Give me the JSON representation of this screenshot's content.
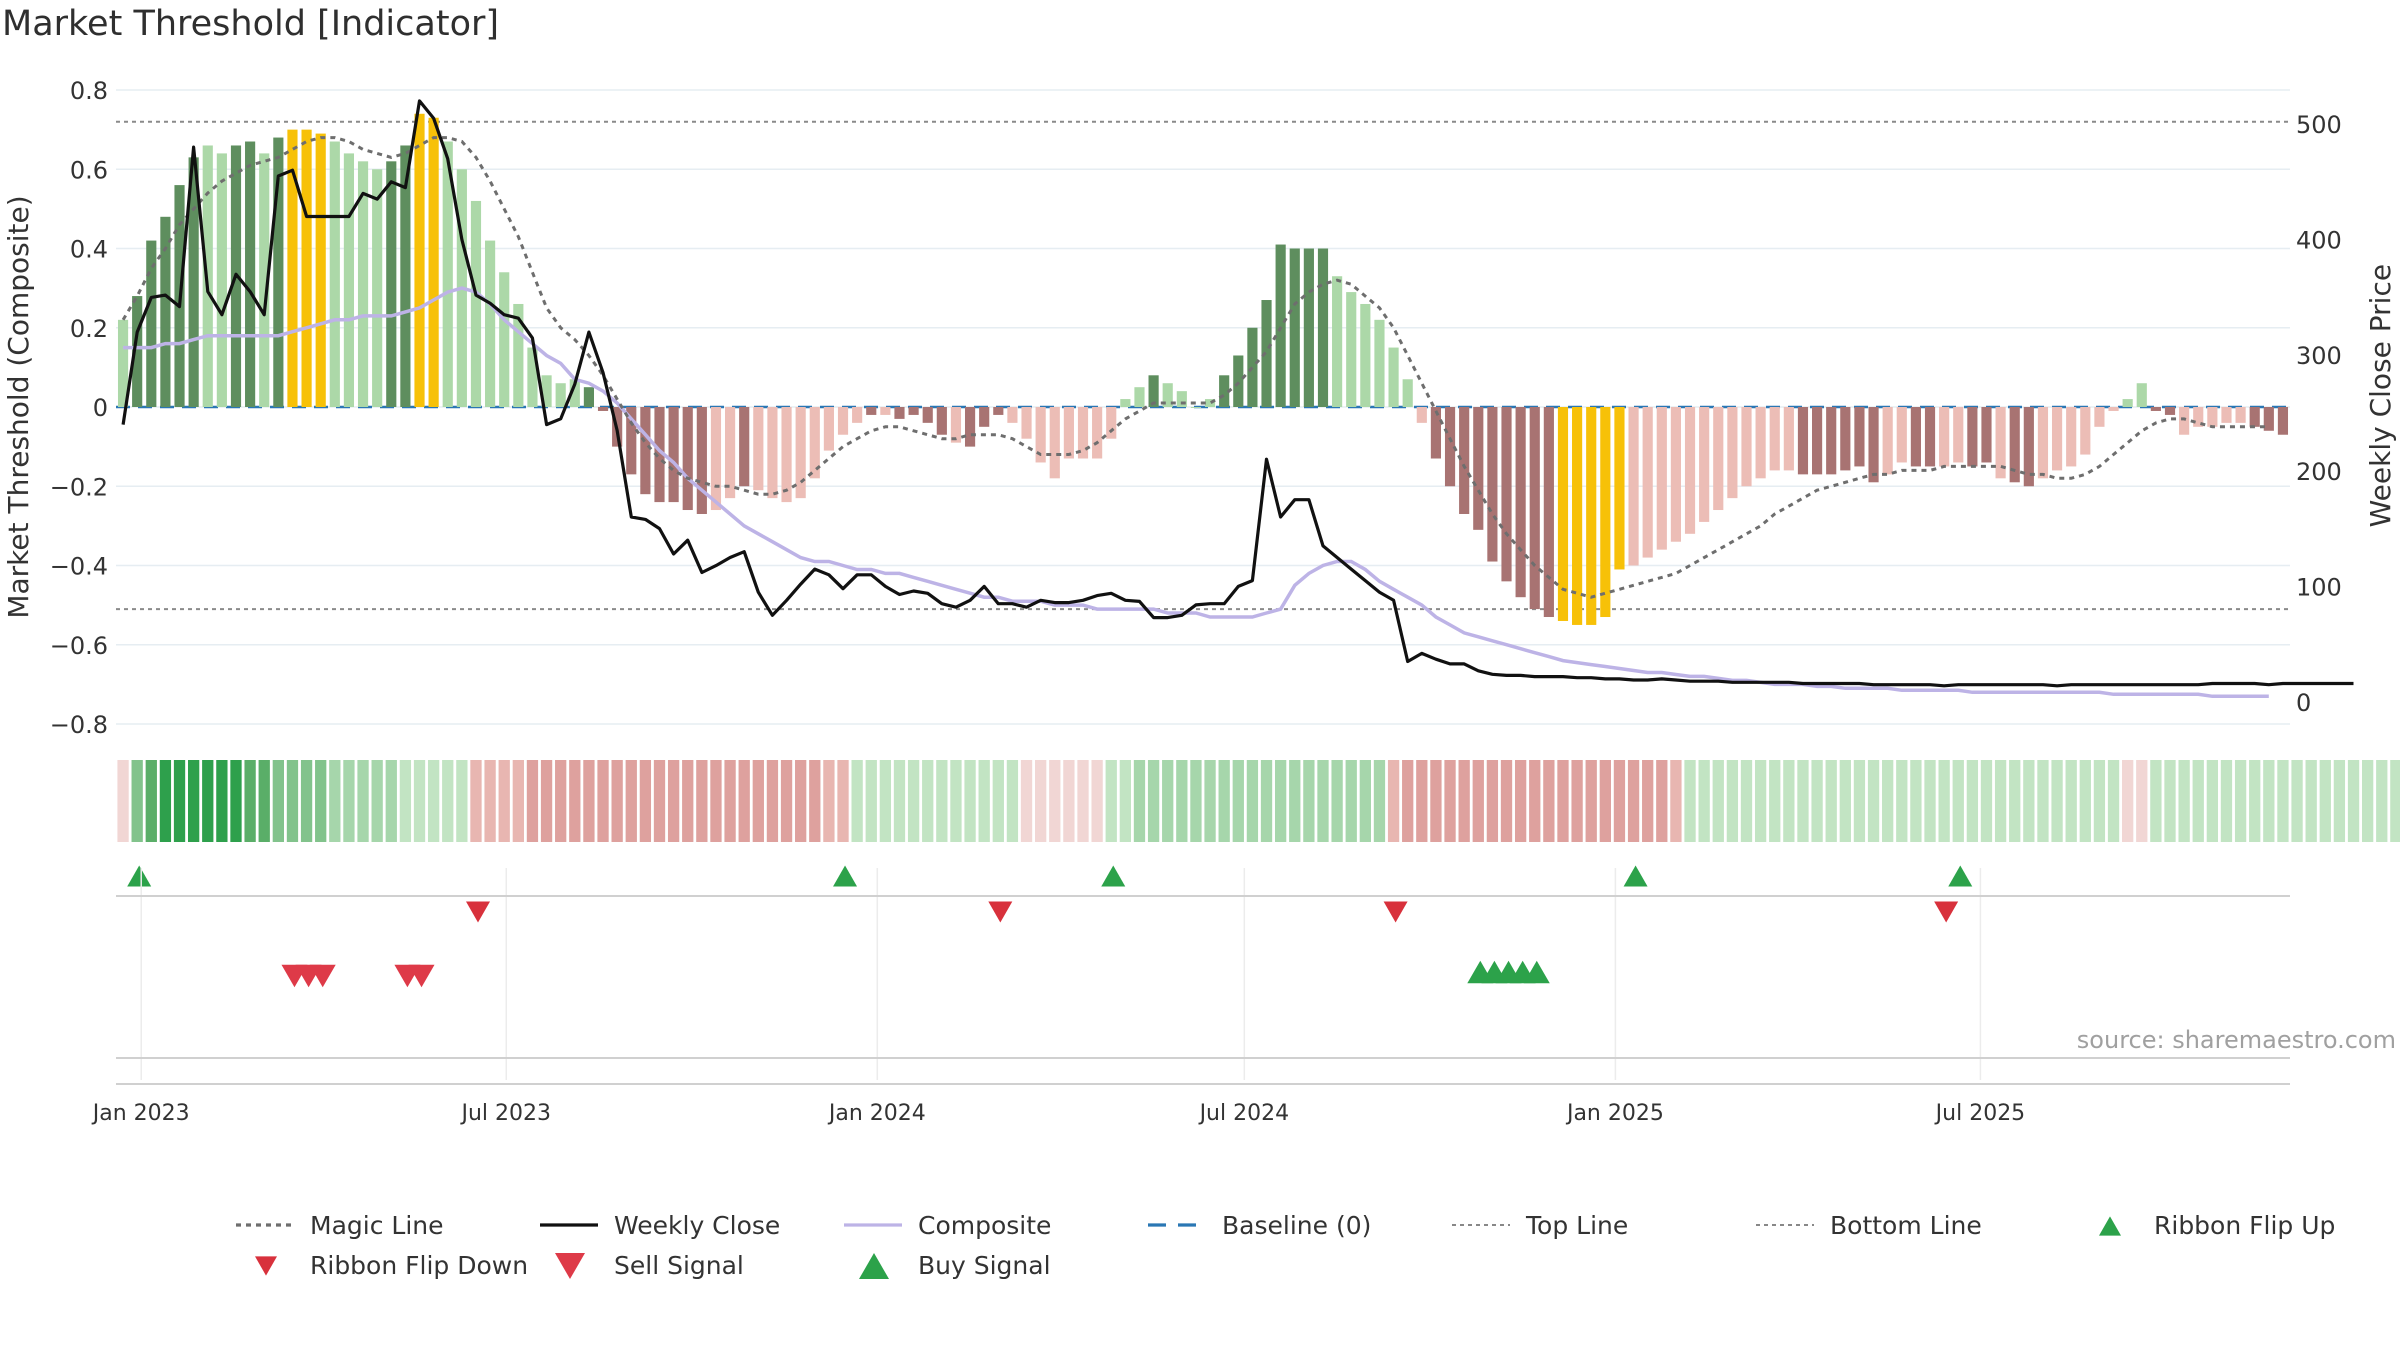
{
  "title": "Market Threshold [Indicator]",
  "source_note": "source: sharemaestro.com",
  "chart_data": {
    "type": "bar",
    "title": "Market Threshold [Indicator]",
    "ylabel": "Market Threshold (Composite)",
    "y2label": "Weekly Close Price",
    "ylim": [
      -0.8,
      0.8
    ],
    "y2lim": [
      0,
      530
    ],
    "yticks": [
      0.8,
      0.6,
      0.4,
      0.2,
      0,
      -0.2,
      -0.4,
      -0.6,
      -0.8
    ],
    "yticklabels": [
      "0.8",
      "0.6",
      "0.4",
      "0.2",
      "0",
      "−0.2",
      "−0.4",
      "−0.6",
      "−0.8"
    ],
    "y2ticks": [
      500,
      400,
      300,
      200,
      100,
      0
    ],
    "xticklabels": [
      "Jan 2023",
      "Jul 2023",
      "Jan 2024",
      "Jul 2024",
      "Jan 2025",
      "Jul 2025"
    ],
    "x_start": "2022-12-23",
    "x_step_days": 7,
    "top_line": 0.72,
    "bottom_line": -0.51,
    "grid": true,
    "legend_position": "bottom",
    "colors": {
      "strong_pos": "#5e8e5e",
      "weak_pos": "#acd8a8",
      "strong_neg": "#a87372",
      "weak_neg": "#ecbdb6",
      "threshold": "#f7c108",
      "magic": "#6e6e6e",
      "close": "#111111",
      "composite": "#bdb3e6",
      "baseline": "#2a77b4",
      "buy": "#2ca24a",
      "sell": "#d8313c"
    },
    "composite_bars": [
      0.22,
      0.28,
      0.42,
      0.48,
      0.56,
      0.63,
      0.66,
      0.64,
      0.66,
      0.67,
      0.64,
      0.68,
      0.7,
      0.7,
      0.69,
      0.67,
      0.64,
      0.62,
      0.6,
      0.62,
      0.66,
      0.74,
      0.73,
      0.67,
      0.6,
      0.52,
      0.42,
      0.34,
      0.26,
      0.15,
      0.08,
      0.06,
      0.07,
      0.05,
      -0.01,
      -0.1,
      -0.17,
      -0.22,
      -0.24,
      -0.24,
      -0.26,
      -0.27,
      -0.26,
      -0.23,
      -0.2,
      -0.21,
      -0.23,
      -0.24,
      -0.23,
      -0.18,
      -0.11,
      -0.07,
      -0.04,
      -0.02,
      -0.02,
      -0.03,
      -0.02,
      -0.04,
      -0.07,
      -0.09,
      -0.1,
      -0.05,
      -0.02,
      -0.04,
      -0.08,
      -0.14,
      -0.18,
      -0.13,
      -0.13,
      -0.13,
      -0.08,
      0.02,
      0.05,
      0.08,
      0.06,
      0.04,
      0.0,
      0.02,
      0.08,
      0.13,
      0.2,
      0.27,
      0.41,
      0.4,
      0.4,
      0.4,
      0.33,
      0.29,
      0.26,
      0.22,
      0.15,
      0.07,
      -0.04,
      -0.13,
      -0.2,
      -0.27,
      -0.31,
      -0.39,
      -0.44,
      -0.48,
      -0.51,
      -0.53,
      -0.54,
      -0.55,
      -0.55,
      -0.53,
      -0.41,
      -0.4,
      -0.38,
      -0.36,
      -0.34,
      -0.32,
      -0.29,
      -0.26,
      -0.23,
      -0.2,
      -0.18,
      -0.16,
      -0.16,
      -0.17,
      -0.17,
      -0.17,
      -0.16,
      -0.15,
      -0.19,
      -0.17,
      -0.14,
      -0.15,
      -0.15,
      -0.15,
      -0.14,
      -0.15,
      -0.14,
      -0.18,
      -0.19,
      -0.2,
      -0.18,
      -0.16,
      -0.15,
      -0.12,
      -0.05,
      -0.01,
      0.02,
      0.06,
      -0.01,
      -0.02,
      -0.07,
      -0.05,
      -0.05,
      -0.04,
      -0.04,
      -0.05,
      -0.06,
      -0.07
    ],
    "bar_shade": [
      "w",
      "s",
      "s",
      "s",
      "s",
      "s",
      "w",
      "w",
      "s",
      "s",
      "w",
      "s",
      "t",
      "t",
      "t",
      "w",
      "w",
      "w",
      "w",
      "s",
      "s",
      "t",
      "t",
      "w",
      "w",
      "w",
      "w",
      "w",
      "w",
      "w",
      "w",
      "w",
      "w",
      "s",
      "s",
      "s",
      "s",
      "s",
      "s",
      "s",
      "s",
      "s",
      "w",
      "w",
      "s",
      "w",
      "w",
      "w",
      "w",
      "w",
      "w",
      "w",
      "w",
      "s",
      "w",
      "s",
      "s",
      "s",
      "s",
      "w",
      "s",
      "s",
      "s",
      "w",
      "w",
      "w",
      "w",
      "w",
      "w",
      "w",
      "w",
      "w",
      "w",
      "s",
      "w",
      "w",
      "w",
      "w",
      "s",
      "s",
      "s",
      "s",
      "s",
      "s",
      "s",
      "s",
      "w",
      "w",
      "w",
      "w",
      "w",
      "w",
      "w",
      "s",
      "s",
      "s",
      "s",
      "s",
      "s",
      "s",
      "s",
      "s",
      "t",
      "t",
      "t",
      "t",
      "t",
      "w",
      "w",
      "w",
      "w",
      "w",
      "w",
      "w",
      "w",
      "w",
      "w",
      "w",
      "w",
      "s",
      "s",
      "s",
      "s",
      "s",
      "s",
      "w",
      "w",
      "s",
      "s",
      "w",
      "w",
      "s",
      "s",
      "w",
      "s",
      "s",
      "w",
      "w",
      "w",
      "w",
      "w",
      "w",
      "w",
      "w",
      "s",
      "s",
      "w",
      "w",
      "w",
      "w",
      "w",
      "s",
      "s",
      "s",
      "s",
      "s",
      "s",
      "s",
      "s"
    ],
    "magic_line": [
      0.22,
      0.28,
      0.35,
      0.4,
      0.46,
      0.5,
      0.54,
      0.57,
      0.59,
      0.61,
      0.62,
      0.63,
      0.65,
      0.67,
      0.68,
      0.68,
      0.67,
      0.65,
      0.64,
      0.63,
      0.64,
      0.66,
      0.68,
      0.68,
      0.67,
      0.63,
      0.57,
      0.5,
      0.43,
      0.34,
      0.25,
      0.2,
      0.17,
      0.13,
      0.08,
      0.02,
      -0.04,
      -0.09,
      -0.13,
      -0.16,
      -0.18,
      -0.19,
      -0.2,
      -0.2,
      -0.21,
      -0.22,
      -0.22,
      -0.21,
      -0.19,
      -0.16,
      -0.13,
      -0.1,
      -0.08,
      -0.06,
      -0.05,
      -0.05,
      -0.06,
      -0.07,
      -0.08,
      -0.08,
      -0.07,
      -0.07,
      -0.07,
      -0.08,
      -0.1,
      -0.12,
      -0.12,
      -0.12,
      -0.11,
      -0.09,
      -0.06,
      -0.03,
      -0.01,
      0.01,
      0.01,
      0.01,
      0.01,
      0.01,
      0.03,
      0.06,
      0.1,
      0.14,
      0.2,
      0.26,
      0.29,
      0.31,
      0.32,
      0.31,
      0.28,
      0.25,
      0.2,
      0.13,
      0.06,
      -0.01,
      -0.08,
      -0.15,
      -0.21,
      -0.27,
      -0.32,
      -0.36,
      -0.4,
      -0.43,
      -0.46,
      -0.47,
      -0.48,
      -0.47,
      -0.46,
      -0.45,
      -0.44,
      -0.43,
      -0.42,
      -0.4,
      -0.38,
      -0.36,
      -0.34,
      -0.32,
      -0.3,
      -0.27,
      -0.25,
      -0.23,
      -0.21,
      -0.2,
      -0.19,
      -0.18,
      -0.17,
      -0.17,
      -0.16,
      -0.16,
      -0.16,
      -0.15,
      -0.15,
      -0.15,
      -0.15,
      -0.15,
      -0.16,
      -0.17,
      -0.17,
      -0.18,
      -0.18,
      -0.17,
      -0.15,
      -0.12,
      -0.09,
      -0.06,
      -0.04,
      -0.03,
      -0.03,
      -0.04,
      -0.05,
      -0.05,
      -0.05,
      -0.05,
      -0.05
    ],
    "composite_line": [
      0.15,
      0.15,
      0.15,
      0.16,
      0.16,
      0.17,
      0.18,
      0.18,
      0.18,
      0.18,
      0.18,
      0.18,
      0.19,
      0.2,
      0.21,
      0.22,
      0.22,
      0.23,
      0.23,
      0.23,
      0.24,
      0.25,
      0.27,
      0.29,
      0.3,
      0.29,
      0.26,
      0.22,
      0.19,
      0.16,
      0.13,
      0.11,
      0.07,
      0.06,
      0.04,
      0.01,
      -0.03,
      -0.07,
      -0.11,
      -0.14,
      -0.18,
      -0.21,
      -0.24,
      -0.27,
      -0.3,
      -0.32,
      -0.34,
      -0.36,
      -0.38,
      -0.39,
      -0.39,
      -0.4,
      -0.41,
      -0.41,
      -0.42,
      -0.42,
      -0.43,
      -0.44,
      -0.45,
      -0.46,
      -0.47,
      -0.48,
      -0.48,
      -0.49,
      -0.49,
      -0.49,
      -0.5,
      -0.5,
      -0.5,
      -0.51,
      -0.51,
      -0.51,
      -0.51,
      -0.51,
      -0.52,
      -0.52,
      -0.52,
      -0.53,
      -0.53,
      -0.53,
      -0.53,
      -0.52,
      -0.51,
      -0.45,
      -0.42,
      -0.4,
      -0.39,
      -0.39,
      -0.41,
      -0.44,
      -0.46,
      -0.48,
      -0.5,
      -0.53,
      -0.55,
      -0.57,
      -0.58,
      -0.59,
      -0.6,
      -0.61,
      -0.62,
      -0.63,
      -0.64,
      -0.645,
      -0.65,
      -0.655,
      -0.66,
      -0.665,
      -0.67,
      -0.67,
      -0.675,
      -0.68,
      -0.68,
      -0.685,
      -0.69,
      -0.69,
      -0.695,
      -0.7,
      -0.7,
      -0.7,
      -0.705,
      -0.705,
      -0.71,
      -0.71,
      -0.71,
      -0.71,
      -0.715,
      -0.715,
      -0.715,
      -0.715,
      -0.715,
      -0.72,
      -0.72,
      -0.72,
      -0.72,
      -0.72,
      -0.72,
      -0.72,
      -0.72,
      -0.72,
      -0.72,
      -0.725,
      -0.725,
      -0.725,
      -0.725,
      -0.725,
      -0.725,
      -0.725,
      -0.73,
      -0.73,
      -0.73,
      -0.73,
      -0.73
    ],
    "weekly_close": [
      240,
      320,
      350,
      352,
      342,
      480,
      355,
      335,
      370,
      355,
      335,
      455,
      460,
      420,
      420,
      420,
      420,
      440,
      435,
      450,
      445,
      520,
      505,
      470,
      400,
      352,
      345,
      335,
      332,
      315,
      240,
      245,
      275,
      320,
      285,
      235,
      160,
      158,
      150,
      128,
      140,
      112,
      118,
      125,
      130,
      95,
      75,
      88,
      102,
      115,
      110,
      98,
      110,
      110,
      100,
      93,
      96,
      94,
      85,
      82,
      88,
      100,
      85,
      85,
      82,
      88,
      86,
      86,
      88,
      92,
      94,
      88,
      87,
      73,
      73,
      75,
      84,
      85,
      85,
      100,
      105,
      210,
      160,
      175,
      175,
      135,
      125,
      115,
      105,
      95,
      88,
      35,
      42,
      37,
      33,
      33,
      27,
      24,
      23,
      23,
      22,
      22,
      22,
      21,
      21,
      20,
      20,
      19,
      19,
      20,
      19,
      18,
      18,
      18,
      17,
      17,
      17,
      17,
      17,
      16,
      16,
      16,
      16,
      16,
      15,
      15,
      15,
      15,
      15,
      14,
      15,
      15,
      15,
      15,
      15,
      15,
      15,
      14,
      15,
      15,
      15,
      15,
      15,
      15,
      15,
      15,
      15,
      15,
      16,
      16,
      16,
      16,
      15,
      16,
      16,
      16,
      16,
      16,
      16
    ],
    "ribbon_levels": [
      -1,
      3,
      4,
      5,
      5,
      5,
      5,
      5,
      5,
      4,
      4,
      3,
      3,
      3,
      3,
      2,
      2,
      2,
      2,
      2,
      1,
      1,
      1,
      1,
      1,
      -2,
      -2,
      -2,
      -2,
      -3,
      -3,
      -3,
      -3,
      -3,
      -3,
      -3,
      -3,
      -3,
      -3,
      -3,
      -3,
      -3,
      -3,
      -3,
      -3,
      -3,
      -3,
      -3,
      -3,
      -3,
      -2,
      -2,
      1,
      1,
      1,
      1,
      1,
      1,
      1,
      1,
      1,
      1,
      1,
      1,
      -1,
      -1,
      -1,
      -1,
      -1,
      -1,
      1,
      1,
      2,
      2,
      2,
      2,
      2,
      2,
      2,
      2,
      2,
      2,
      2,
      2,
      2,
      2,
      2,
      2,
      2,
      2,
      -2,
      -3,
      -3,
      -3,
      -3,
      -3,
      -3,
      -3,
      -3,
      -3,
      -3,
      -3,
      -3,
      -3,
      -3,
      -3,
      -3,
      -3,
      -3,
      -3,
      -2,
      1,
      1,
      1,
      1,
      1,
      1,
      1,
      1,
      1,
      1,
      1,
      1,
      1,
      1,
      1,
      1,
      1,
      1,
      1,
      1,
      1,
      1,
      1,
      1,
      1,
      1,
      1,
      1,
      1,
      1,
      1,
      -1,
      -1,
      1,
      1,
      1,
      1,
      1,
      1,
      1,
      1,
      1,
      1,
      1,
      1,
      1,
      1,
      1,
      1,
      1,
      1
    ],
    "ribbon_flip_up_dates": [
      "2022-12-31",
      "2023-12-16",
      "2024-04-27",
      "2025-01-11",
      "2025-06-21"
    ],
    "ribbon_flip_down_dates": [
      "2023-06-17",
      "2024-03-02",
      "2024-09-14",
      "2025-06-14"
    ],
    "sell_signal_dates": [
      "2023-03-18",
      "2023-03-25",
      "2023-04-01",
      "2023-05-13",
      "2023-05-20"
    ],
    "buy_signal_dates": [
      "2024-10-26",
      "2024-11-02",
      "2024-11-09",
      "2024-11-16",
      "2024-11-23"
    ]
  },
  "legend": {
    "items": [
      {
        "label": "Magic Line",
        "kind": "dotted",
        "color": "#6e6e6e"
      },
      {
        "label": "Weekly Close",
        "kind": "solid",
        "color": "#111111"
      },
      {
        "label": "Composite",
        "kind": "solid",
        "color": "#bdb3e6"
      },
      {
        "label": "Baseline (0)",
        "kind": "dashed",
        "color": "#2a77b4"
      },
      {
        "label": "Top Line",
        "kind": "dotted-thin",
        "color": "#888888"
      },
      {
        "label": "Bottom Line",
        "kind": "dotted-thin",
        "color": "#888888"
      },
      {
        "label": "Ribbon Flip Up",
        "kind": "triangle-up",
        "color": "#2ca24a"
      },
      {
        "label": "Ribbon Flip Down",
        "kind": "triangle-down",
        "color": "#d8313c"
      },
      {
        "label": "Sell Signal",
        "kind": "triangle-down-big",
        "color": "#de3a48"
      },
      {
        "label": "Buy Signal",
        "kind": "triangle-up-big",
        "color": "#2ca24a"
      }
    ]
  }
}
